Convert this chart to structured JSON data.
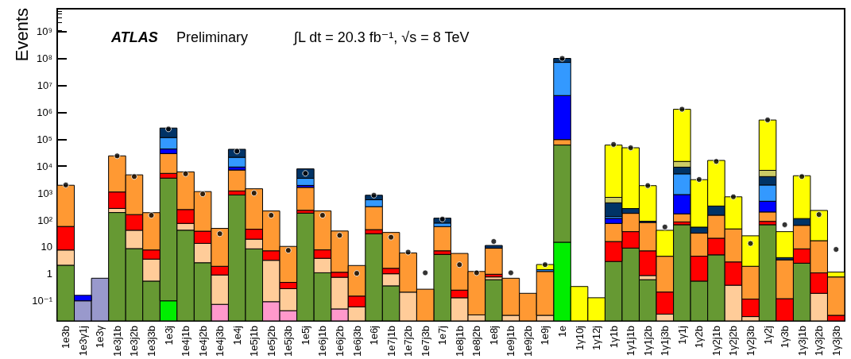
{
  "chart_data": {
    "type": "bar",
    "stacked": true,
    "ylabel": "Events",
    "log": true,
    "legend": false,
    "grid": false,
    "annotations": [
      "ATLAS",
      "Preliminary",
      "∫L dt = 20.3 fb⁻¹, √s = 8 TeV"
    ],
    "categories": [
      "1e3b",
      "1e3γ1j",
      "1e3γ",
      "1e3j1b",
      "1e3j2b",
      "1e3j3b",
      "1e3j",
      "1e4j1b",
      "1e4j2b",
      "1e4j3b",
      "1e4j",
      "1e5j1b",
      "1e5j2b",
      "1e5j3b",
      "1e5j",
      "1e6j1b",
      "1e6j2b",
      "1e6j3b",
      "1e6j",
      "1e7j1b",
      "1e7j2b",
      "1e7j3b",
      "1e7j",
      "1e8j1b",
      "1e8j2b",
      "1e8j",
      "1e9j1b",
      "1e9j2b",
      "1e9j",
      "1e",
      "1γ10j",
      "1γ12j",
      "1γ1b",
      "1γ1j1b",
      "1γ1j2b",
      "1γ1j3b",
      "1γ1j",
      "1γ2b",
      "1γ2j1b",
      "1γ2j2b",
      "1γ2j3b",
      "1γ2j",
      "1γ3b",
      "1γ3j1b",
      "1γ3j2b",
      "1γ3j3b"
    ],
    "ylim": [
      0.018,
      7000000000
    ],
    "yticks": [
      {
        "value": 0.1,
        "label": "10⁻¹"
      },
      1,
      10,
      {
        "value": 100,
        "label": "10²"
      },
      {
        "value": 1000,
        "label": "10³"
      },
      {
        "value": 10000,
        "label": "10⁴"
      },
      {
        "value": 100000,
        "label": "10⁵"
      },
      {
        "value": 1000000,
        "label": "10⁶"
      },
      {
        "value": 10000000,
        "label": "10⁷"
      },
      {
        "value": 100000000,
        "label": "10⁸"
      },
      {
        "value": 1000000000,
        "label": "10⁹"
      }
    ],
    "series": [
      {
        "color": "#ff99cc",
        "values": [
          null,
          null,
          null,
          null,
          null,
          null,
          null,
          null,
          null,
          0.074,
          null,
          null,
          0.093,
          0.043,
          null,
          null,
          0.05,
          null,
          null,
          null,
          null,
          null,
          null,
          null,
          null,
          null,
          null,
          null,
          null,
          null,
          null,
          null,
          null,
          null,
          null,
          null,
          null,
          null,
          null,
          null,
          null,
          null,
          null,
          null,
          null,
          null
        ]
      },
      {
        "color": "#00ee00",
        "values": [
          null,
          null,
          null,
          null,
          null,
          null,
          0.1,
          null,
          null,
          null,
          null,
          null,
          null,
          null,
          null,
          null,
          null,
          null,
          null,
          null,
          null,
          null,
          null,
          null,
          null,
          null,
          null,
          null,
          null,
          15,
          null,
          null,
          null,
          null,
          null,
          null,
          null,
          null,
          null,
          null,
          null,
          null,
          null,
          null,
          null,
          null
        ]
      },
      {
        "color": "#669933",
        "values": [
          2.1,
          null,
          null,
          190,
          8.7,
          0.54,
          3600,
          42,
          2.6,
          null,
          850,
          8.5,
          null,
          null,
          180,
          1.1,
          null,
          null,
          31,
          0.36,
          null,
          null,
          5.3,
          null,
          null,
          0.61,
          null,
          null,
          null,
          61000,
          null,
          null,
          2.9,
          9.1,
          0.61,
          null,
          67,
          0.54,
          5.1,
          null,
          null,
          67,
          null,
          2.5,
          null,
          null
        ]
      },
      {
        "color": "#ffcc99",
        "values": [
          5.6,
          null,
          null,
          80,
          33,
          3,
          null,
          33,
          11,
          0.84,
          null,
          11,
          3.1,
          0.24,
          null,
          2.7,
          0.7,
          0.06,
          null,
          0.65,
          0.21,
          null,
          null,
          0.13,
          0.03,
          0.16,
          0.029,
          null,
          0.029,
          null,
          null,
          null,
          null,
          null,
          0.26,
          0.032,
          null,
          null,
          null,
          0.38,
          0.026,
          null,
          null,
          null,
          0.19,
          null
        ]
      },
      {
        "color": "#ff0000",
        "values": [
          50,
          null,
          null,
          830,
          118,
          4.2,
          1800,
          170,
          25,
          1,
          350,
          26,
          4,
          0.2,
          50,
          4,
          0.4,
          0.09,
          13,
          0.6,
          null,
          null,
          1.9,
          0.12,
          null,
          0.2,
          null,
          null,
          null,
          null,
          null,
          null,
          13,
          28,
          6.3,
          0.18,
          18,
          4,
          16,
          2.4,
          0.09,
          22,
          0.12,
          6,
          0.9,
          0.029
        ]
      },
      {
        "color": "#ff9933",
        "values": [
          1900,
          null,
          null,
          23000,
          4600,
          180,
          24000,
          5900,
          1100,
          47,
          6000,
          1400,
          210,
          10,
          1400,
          210,
          38,
          1.9,
          270,
          33,
          5.8,
          0.27,
          50,
          5.5,
          1.2,
          8,
          0.66,
          0.19,
          1.2,
          36000,
          null,
          null,
          59,
          140,
          74,
          4.3,
          85,
          28,
          130,
          44,
          1.8,
          110,
          3.2,
          55,
          16,
          0.74
        ]
      },
      {
        "color": "#9999cc",
        "values": [
          null,
          0.1,
          0.69,
          null,
          null,
          null,
          null,
          null,
          null,
          null,
          null,
          null,
          null,
          null,
          null,
          null,
          null,
          null,
          null,
          null,
          null,
          null,
          null,
          null,
          null,
          null,
          null,
          null,
          null,
          null,
          null,
          null,
          null,
          null,
          null,
          null,
          null,
          null,
          null,
          null,
          null,
          null,
          null,
          null,
          null,
          null
        ]
      },
      {
        "color": "#0000ff",
        "values": [
          null,
          0.06,
          null,
          null,
          null,
          null,
          14000,
          null,
          null,
          null,
          2100,
          null,
          null,
          null,
          300,
          null,
          null,
          null,
          null,
          null,
          null,
          null,
          null,
          null,
          null,
          null,
          null,
          null,
          null,
          4100000,
          null,
          null,
          40,
          null,
          null,
          null,
          710,
          null,
          null,
          null,
          null,
          300,
          null,
          null,
          null,
          null
        ]
      },
      {
        "color": "#3399ff",
        "values": [
          null,
          null,
          null,
          null,
          null,
          null,
          72000,
          null,
          null,
          null,
          12000,
          null,
          null,
          null,
          1600,
          null,
          null,
          null,
          250,
          null,
          null,
          null,
          20,
          null,
          null,
          null,
          null,
          null,
          0.2,
          67000000,
          null,
          null,
          20,
          null,
          null,
          null,
          4300,
          null,
          null,
          null,
          null,
          1500,
          null,
          null,
          null,
          null
        ]
      },
      {
        "color": "#003366",
        "values": [
          null,
          null,
          null,
          null,
          null,
          null,
          145000,
          null,
          null,
          null,
          21000,
          null,
          null,
          null,
          4400,
          null,
          null,
          null,
          270,
          null,
          null,
          null,
          40,
          null,
          null,
          2.4,
          null,
          null,
          null,
          29000000,
          null,
          null,
          300,
          90,
          9,
          null,
          4000,
          22,
          180,
          null,
          null,
          2100,
          0.7,
          50,
          null,
          null
        ]
      },
      {
        "color": "#cccc66",
        "values": [
          null,
          null,
          null,
          null,
          null,
          null,
          null,
          null,
          null,
          null,
          null,
          null,
          null,
          null,
          null,
          null,
          null,
          null,
          null,
          null,
          null,
          null,
          null,
          null,
          null,
          null,
          null,
          null,
          null,
          null,
          null,
          null,
          260,
          null,
          null,
          null,
          5800,
          null,
          null,
          null,
          null,
          2900,
          null,
          null,
          null,
          null
        ]
      },
      {
        "color": "#ffff00",
        "values": [
          null,
          null,
          null,
          null,
          null,
          null,
          null,
          null,
          null,
          null,
          null,
          null,
          null,
          null,
          null,
          null,
          null,
          null,
          null,
          null,
          null,
          null,
          null,
          null,
          null,
          null,
          null,
          null,
          0.8,
          null,
          0.34,
          0.13,
          60000,
          48000,
          1800,
          37,
          1280000,
          3100,
          16000,
          680,
          24,
          510000,
          33,
          4300,
          210,
          0.4
        ]
      },
      {
        "type": "scatter",
        "color": "#000000",
        "values": [
          2000,
          null,
          null,
          24000,
          4100,
          150,
          240000,
          5200,
          930,
          31,
          36000,
          1000,
          150,
          7.5,
          5400,
          150,
          27,
          1.05,
          830,
          23,
          6.4,
          1.1,
          108,
          2.2,
          1.1,
          16,
          1.1,
          null,
          2.2,
          100000000,
          null,
          null,
          64000,
          48000,
          1900,
          55,
          1300000,
          3200,
          15000,
          730,
          13.5,
          520000,
          67,
          4100,
          160,
          8.1
        ]
      }
    ]
  }
}
